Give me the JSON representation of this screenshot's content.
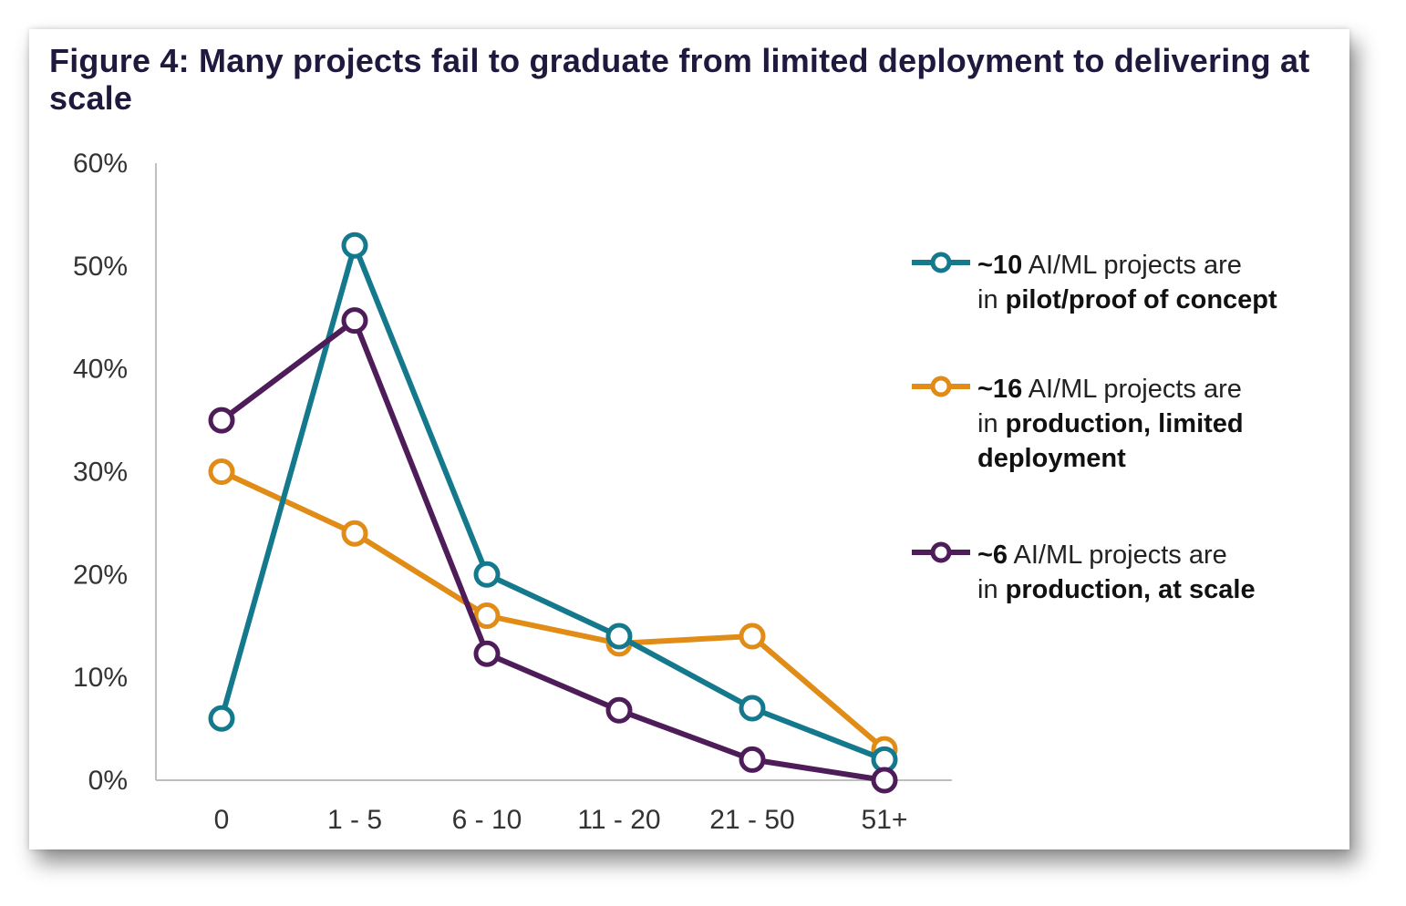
{
  "title": "Figure 4: Many projects fail to graduate from limited deployment to delivering at scale",
  "chart_data": {
    "type": "line",
    "categories": [
      "0",
      "1 - 5",
      "6 - 10",
      "11 - 20",
      "21 - 50",
      "51+"
    ],
    "ylim": [
      0,
      60
    ],
    "yticks": [
      "0%",
      "10%",
      "20%",
      "30%",
      "40%",
      "50%",
      "60%"
    ],
    "grid": false,
    "legend_position": "right",
    "series": [
      {
        "name": "~10 AI/ML projects are in pilot/proof of concept",
        "color": "#14798c",
        "values": [
          6,
          52,
          20,
          14,
          7,
          2
        ]
      },
      {
        "name": "~16 AI/ML projects are in production, limited deployment",
        "color": "#e08c16",
        "values": [
          30,
          24,
          16,
          13.3,
          14,
          3
        ]
      },
      {
        "name": "~6 AI/ML projects are in production, at scale",
        "color": "#4e1d59",
        "values": [
          35,
          44.7,
          12.3,
          6.8,
          2,
          0
        ]
      }
    ]
  },
  "legend": [
    {
      "count": "~10",
      "text": " AI/ML projects are",
      "prefix": "in ",
      "bold": "pilot/proof of concept"
    },
    {
      "count": "~16",
      "text": " AI/ML projects are",
      "prefix": "in ",
      "bold": "production, limited deployment"
    },
    {
      "count": "~6",
      "text": " AI/ML projects are",
      "prefix": "in ",
      "bold": "production, at scale"
    }
  ]
}
